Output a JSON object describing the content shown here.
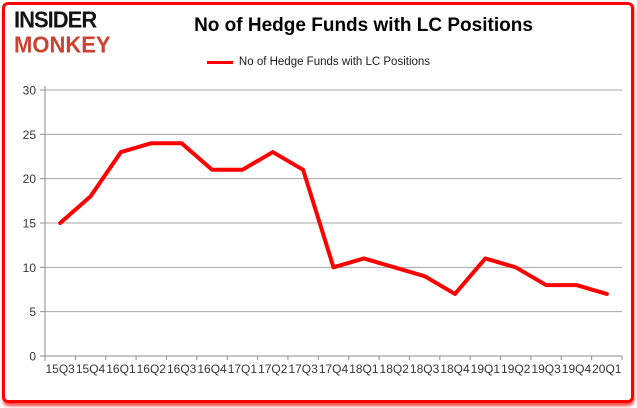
{
  "logo": {
    "line1": "INSIDER",
    "line2": "MONKEY"
  },
  "header": {
    "title": "No of Hedge Funds with LC Positions"
  },
  "legend": {
    "label": "No of Hedge Funds with LC Positions"
  },
  "chart_data": {
    "type": "line",
    "title": "No of Hedge Funds with LC Positions",
    "categories": [
      "15Q3",
      "15Q4",
      "16Q1",
      "16Q2",
      "16Q3",
      "16Q4",
      "17Q1",
      "17Q2",
      "17Q3",
      "17Q4",
      "18Q1",
      "18Q2",
      "18Q3",
      "18Q4",
      "19Q1",
      "19Q2",
      "19Q3",
      "19Q4",
      "20Q1"
    ],
    "series": [
      {
        "name": "No of Hedge Funds with LC Positions",
        "color": "#fe0000",
        "values": [
          15,
          18,
          23,
          24,
          24,
          21,
          21,
          23,
          21,
          10,
          11,
          10,
          9,
          7,
          11,
          10,
          8,
          8,
          7
        ]
      }
    ],
    "xlabel": "",
    "ylabel": "",
    "ylim": [
      0,
      30
    ],
    "yticks": [
      0,
      5,
      10,
      15,
      20,
      25,
      30
    ],
    "grid": true,
    "legend_position": "top-center",
    "colors": {
      "gridline": "#a6a6a6",
      "axis": "#8e8e8e",
      "tick_label": "#353535"
    }
  },
  "frame": {
    "border_color": "#fe0000",
    "background": "#ffffff",
    "logo_black": "#131313",
    "logo_red": "#cd4130"
  }
}
